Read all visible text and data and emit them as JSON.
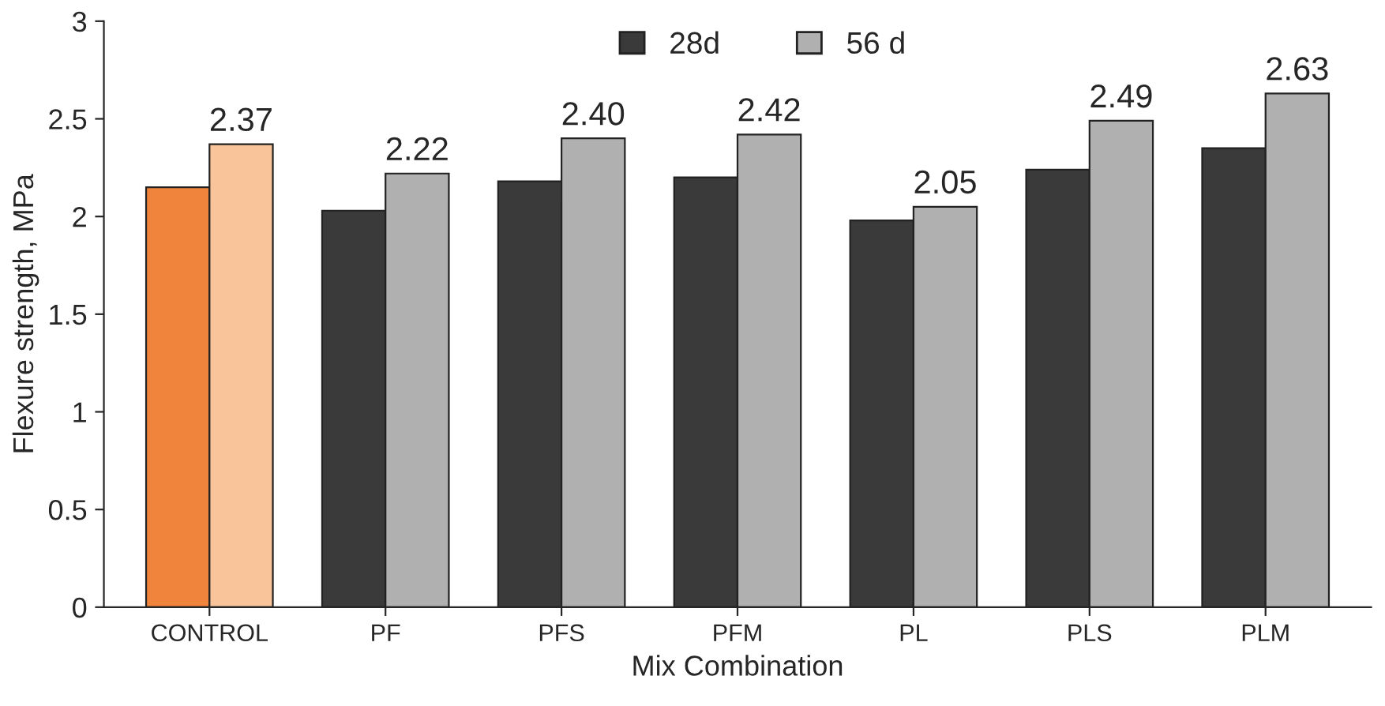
{
  "chart_data": {
    "type": "bar",
    "xlabel": "Mix Combination",
    "ylabel": "Flexure strength, MPa",
    "categories": [
      "CONTROL",
      "PF",
      "PFS",
      "PFM",
      "PL",
      "PLS",
      "PLM"
    ],
    "series": [
      {
        "name": "28d",
        "color": "#3a3a3a",
        "colors": [
          "#f0843c",
          "#3a3a3a",
          "#3a3a3a",
          "#3a3a3a",
          "#3a3a3a",
          "#3a3a3a",
          "#3a3a3a"
        ],
        "values": [
          2.15,
          2.03,
          2.18,
          2.2,
          1.98,
          2.24,
          2.35
        ]
      },
      {
        "name": "56 d",
        "color": "#b0b0b0",
        "colors": [
          "#f9c49a",
          "#b0b0b0",
          "#b0b0b0",
          "#b0b0b0",
          "#b0b0b0",
          "#b0b0b0",
          "#b0b0b0"
        ],
        "values": [
          2.37,
          2.22,
          2.4,
          2.42,
          2.05,
          2.49,
          2.63
        ],
        "value_labels": [
          "2.37",
          "2.22",
          "2.40",
          "2.42",
          "2.05",
          "2.49",
          "2.63"
        ]
      }
    ],
    "ylim": [
      0,
      3
    ],
    "yticks": [
      0,
      0.5,
      1,
      1.5,
      2,
      2.5,
      3
    ],
    "legend": "top",
    "grid": false
  }
}
